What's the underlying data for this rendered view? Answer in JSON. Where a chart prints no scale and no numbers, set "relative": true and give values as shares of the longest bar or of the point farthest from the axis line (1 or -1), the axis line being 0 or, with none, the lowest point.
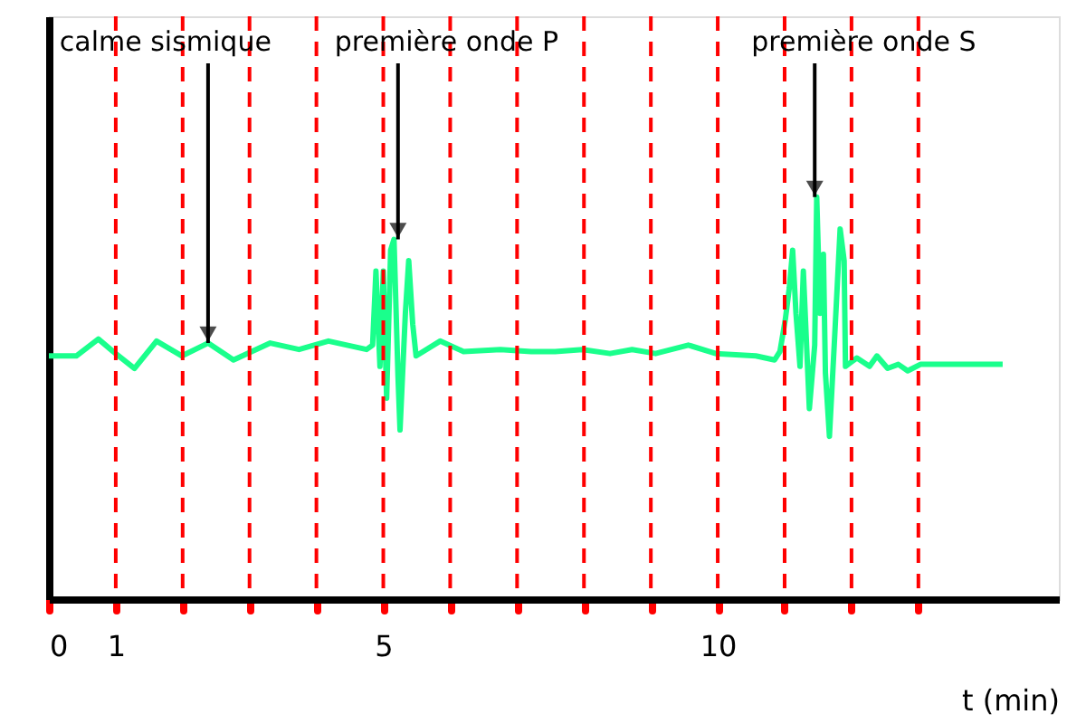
{
  "chart_data": {
    "type": "line",
    "relative": true,
    "xlabel": "t (min)",
    "xlim": [
      0,
      15.1
    ],
    "xticks": [
      0,
      1,
      {
        "value": 2,
        "label": null
      },
      {
        "value": 3,
        "label": null
      },
      {
        "value": 4,
        "label": null
      },
      5,
      {
        "value": 6,
        "label": null
      },
      {
        "value": 7,
        "label": null
      },
      {
        "value": 8,
        "label": null
      },
      {
        "value": 9,
        "label": null
      },
      10,
      {
        "value": 11,
        "label": null
      },
      {
        "value": 12,
        "label": null
      },
      {
        "value": 13,
        "label": null
      }
    ],
    "tick_labels": "x",
    "grid": false,
    "marker": "none",
    "line_style": "solid",
    "series": [
      {
        "color": "#1aff8c",
        "x": [
          0,
          0.41,
          0.74,
          0.96,
          1.28,
          1.61,
          1.99,
          2.38,
          2.76,
          3.31,
          3.74,
          4.18,
          4.75,
          4.84,
          4.89,
          4.95,
          5.0,
          5.05,
          5.11,
          5.16,
          5.22,
          5.25,
          5.33,
          5.38,
          5.44,
          5.49,
          5.85,
          6.2,
          6.75,
          7.21,
          7.57,
          7.98,
          8.39,
          8.72,
          9.07,
          9.56,
          9.97,
          10.57,
          10.85,
          10.93,
          11.01,
          11.07,
          11.12,
          11.17,
          11.23,
          11.28,
          11.37,
          11.45,
          11.48,
          11.53,
          11.58,
          11.61,
          11.67,
          11.75,
          11.83,
          11.89,
          11.91,
          11.99,
          12.08,
          12.27,
          12.38,
          12.54,
          12.7,
          12.84,
          13.03,
          14.26
        ],
        "values": [
          0.605,
          0.605,
          0.647,
          0.616,
          0.574,
          0.642,
          0.605,
          0.637,
          0.595,
          0.637,
          0.621,
          0.642,
          0.621,
          0.632,
          0.816,
          0.579,
          0.816,
          0.5,
          0.868,
          0.895,
          0.553,
          0.421,
          0.711,
          0.842,
          0.684,
          0.605,
          0.642,
          0.616,
          0.621,
          0.616,
          0.616,
          0.621,
          0.611,
          0.621,
          0.611,
          0.632,
          0.611,
          0.605,
          0.595,
          0.616,
          0.695,
          0.774,
          0.868,
          0.711,
          0.579,
          0.816,
          0.474,
          0.632,
          1.0,
          0.711,
          0.858,
          0.563,
          0.405,
          0.658,
          0.921,
          0.842,
          0.579,
          0.589,
          0.6,
          0.579,
          0.605,
          0.574,
          0.584,
          0.568,
          0.584,
          0.584
        ]
      }
    ],
    "ref_lines": [
      {
        "axis": "x",
        "value": 1,
        "color": "#ff0000",
        "line_style": "dashed"
      },
      {
        "axis": "x",
        "value": 2,
        "color": "#ff0000",
        "line_style": "dashed"
      },
      {
        "axis": "x",
        "value": 3,
        "color": "#ff0000",
        "line_style": "dashed"
      },
      {
        "axis": "x",
        "value": 4,
        "color": "#ff0000",
        "line_style": "dashed"
      },
      {
        "axis": "x",
        "value": 5,
        "color": "#ff0000",
        "line_style": "dashed"
      },
      {
        "axis": "x",
        "value": 6,
        "color": "#ff0000",
        "line_style": "dashed"
      },
      {
        "axis": "x",
        "value": 7,
        "color": "#ff0000",
        "line_style": "dashed"
      },
      {
        "axis": "x",
        "value": 8,
        "color": "#ff0000",
        "line_style": "dashed"
      },
      {
        "axis": "x",
        "value": 9,
        "color": "#ff0000",
        "line_style": "dashed"
      },
      {
        "axis": "x",
        "value": 10,
        "color": "#ff0000",
        "line_style": "dashed"
      },
      {
        "axis": "x",
        "value": 11,
        "color": "#ff0000",
        "line_style": "dashed"
      },
      {
        "axis": "x",
        "value": 12,
        "color": "#ff0000",
        "line_style": "dashed"
      },
      {
        "axis": "x",
        "value": 13,
        "color": "#ff0000",
        "line_style": "dashed"
      }
    ],
    "annotations": [
      {
        "text": "calme sismique",
        "x": 2.38,
        "y": 0.637
      },
      {
        "text": "première onde P",
        "x": 5.22,
        "y": 0.895
      },
      {
        "text": "première onde  S",
        "x": 11.45,
        "y": 1.0
      }
    ]
  }
}
